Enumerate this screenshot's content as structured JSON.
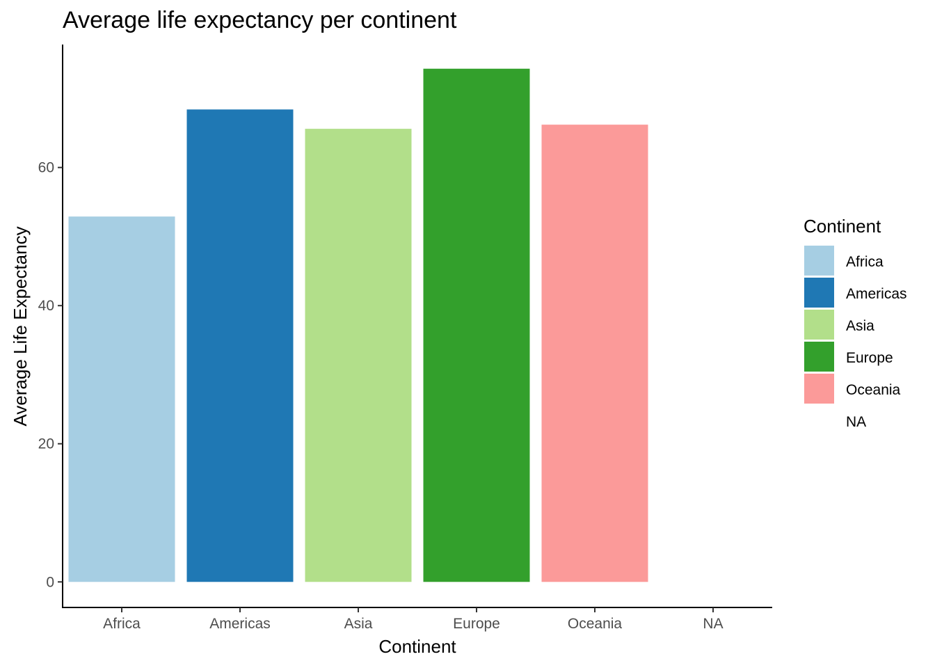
{
  "chart_data": {
    "type": "bar",
    "title": "Average life expectancy per continent",
    "xlabel": "Continent",
    "ylabel": "Average Life Expectancy",
    "categories": [
      "Africa",
      "Americas",
      "Asia",
      "Europe",
      "Oceania",
      "NA"
    ],
    "values": [
      52.9,
      68.4,
      65.6,
      74.3,
      66.2,
      null
    ],
    "colors": [
      "#A6CEE3",
      "#1F78B4",
      "#B2DF8A",
      "#33A02C",
      "#FB9A99",
      "#ffffff"
    ],
    "yticks": [
      0,
      20,
      40,
      60
    ],
    "ylim": [
      -3.7,
      77.8
    ],
    "grid": false,
    "legend": {
      "title": "Continent",
      "position": "right",
      "entries": [
        "Africa",
        "Americas",
        "Asia",
        "Europe",
        "Oceania",
        "NA"
      ]
    }
  }
}
